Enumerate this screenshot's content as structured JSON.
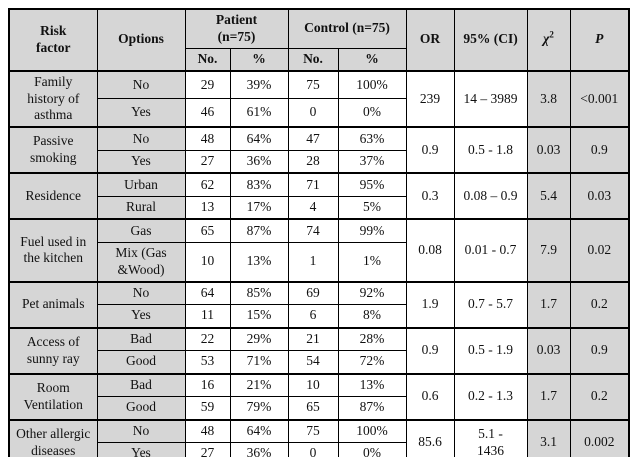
{
  "colors": {
    "shade": "#d6d6d6",
    "border": "#000000",
    "background": "#ffffff"
  },
  "table": {
    "header": {
      "risk_factor": "Risk\nfactor",
      "options": "Options",
      "patient": "Patient\n(n=75)",
      "control": "Control (n=75)",
      "no_label": "No.",
      "pct_label": "%",
      "or": "OR",
      "ci": "95% (CI)",
      "chi": "χ",
      "chi_sup": "2",
      "p": "P"
    },
    "groups": [
      {
        "risk_factor": "Family history of asthma",
        "or": "239",
        "ci": "14 – 3989",
        "chi2": "3.8",
        "p": "<0.001",
        "rows": [
          {
            "option": "No",
            "pt_no": "29",
            "pt_pct": "39%",
            "ct_no": "75",
            "ct_pct": "100%"
          },
          {
            "option": "Yes",
            "pt_no": "46",
            "pt_pct": "61%",
            "ct_no": "0",
            "ct_pct": "0%"
          }
        ]
      },
      {
        "risk_factor": "Passive smoking",
        "or": "0.9",
        "ci": "0.5 - 1.8",
        "chi2": "0.03",
        "p": "0.9",
        "rows": [
          {
            "option": "No",
            "pt_no": "48",
            "pt_pct": "64%",
            "ct_no": "47",
            "ct_pct": "63%"
          },
          {
            "option": "Yes",
            "pt_no": "27",
            "pt_pct": "36%",
            "ct_no": "28",
            "ct_pct": "37%"
          }
        ]
      },
      {
        "risk_factor": "Residence",
        "or": "0.3",
        "ci": "0.08 – 0.9",
        "chi2": "5.4",
        "p": "0.03",
        "rows": [
          {
            "option": "Urban",
            "pt_no": "62",
            "pt_pct": "83%",
            "ct_no": "71",
            "ct_pct": "95%"
          },
          {
            "option": "Rural",
            "pt_no": "13",
            "pt_pct": "17%",
            "ct_no": "4",
            "ct_pct": "5%"
          }
        ]
      },
      {
        "risk_factor": "Fuel used in the kitchen",
        "or": "0.08",
        "ci": "0.01 - 0.7",
        "chi2": "7.9",
        "p": "0.02",
        "rows": [
          {
            "option": "Gas",
            "pt_no": "65",
            "pt_pct": "87%",
            "ct_no": "74",
            "ct_pct": "99%"
          },
          {
            "option": "Mix (Gas\n&Wood)",
            "pt_no": "10",
            "pt_pct": "13%",
            "ct_no": "1",
            "ct_pct": "1%"
          }
        ]
      },
      {
        "risk_factor": "Pet animals",
        "or": "1.9",
        "ci": "0.7 - 5.7",
        "chi2": "1.7",
        "p": "0.2",
        "rows": [
          {
            "option": "No",
            "pt_no": "64",
            "pt_pct": "85%",
            "ct_no": "69",
            "ct_pct": "92%"
          },
          {
            "option": "Yes",
            "pt_no": "11",
            "pt_pct": "15%",
            "ct_no": "6",
            "ct_pct": "8%"
          }
        ]
      },
      {
        "risk_factor": "Access of sunny ray",
        "or": "0.9",
        "ci": "0.5 - 1.9",
        "chi2": "0.03",
        "p": "0.9",
        "rows": [
          {
            "option": "Bad",
            "pt_no": "22",
            "pt_pct": "29%",
            "ct_no": "21",
            "ct_pct": "28%"
          },
          {
            "option": "Good",
            "pt_no": "53",
            "pt_pct": "71%",
            "ct_no": "54",
            "ct_pct": "72%"
          }
        ]
      },
      {
        "risk_factor": "Room Ventilation",
        "or": "0.6",
        "ci": "0.2 - 1.3",
        "chi2": "1.7",
        "p": "0.2",
        "rows": [
          {
            "option": "Bad",
            "pt_no": "16",
            "pt_pct": "21%",
            "ct_no": "10",
            "ct_pct": "13%"
          },
          {
            "option": "Good",
            "pt_no": "59",
            "pt_pct": "79%",
            "ct_no": "65",
            "ct_pct": "87%"
          }
        ]
      },
      {
        "risk_factor": "Other allergic diseases",
        "or": "85.6",
        "ci": "5.1 -\n1436",
        "chi2": "3.1",
        "p": "0.002",
        "rows": [
          {
            "option": "No",
            "pt_no": "48",
            "pt_pct": "64%",
            "ct_no": "75",
            "ct_pct": "100%"
          },
          {
            "option": "Yes",
            "pt_no": "27",
            "pt_pct": "36%",
            "ct_no": "0",
            "ct_pct": "0%"
          }
        ]
      }
    ]
  }
}
